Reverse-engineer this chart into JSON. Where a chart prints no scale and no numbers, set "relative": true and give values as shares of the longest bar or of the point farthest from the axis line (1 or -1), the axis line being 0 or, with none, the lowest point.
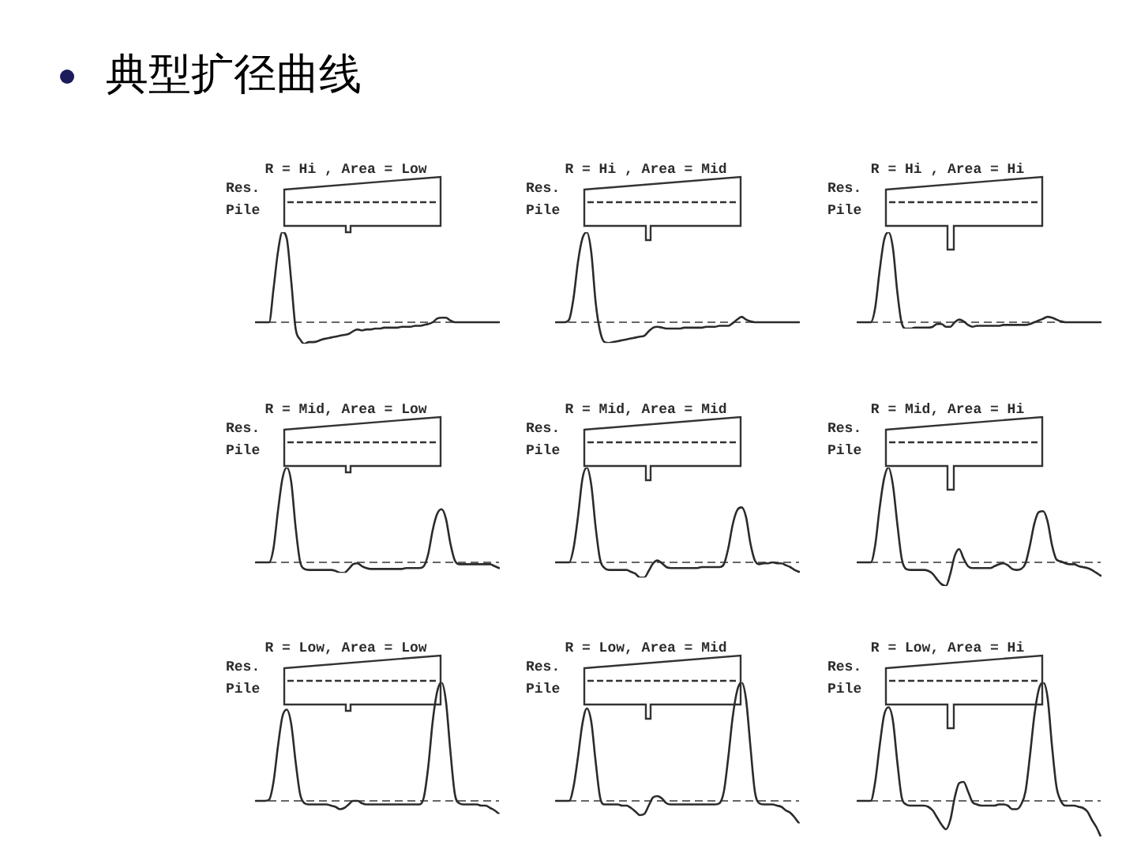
{
  "chart_data": [
    {
      "type": "other",
      "title": "典型扩径曲线"
    },
    {
      "type": "line",
      "title": "R = Hi , Area = Low",
      "annotations": [
        "Res.",
        "Pile"
      ],
      "relative": true,
      "marker": "none",
      "line_style": "solid",
      "ref_lines": [
        {
          "axis": "y",
          "value": 0,
          "line_style": "dashed",
          "color": "#666666"
        }
      ],
      "categories": [
        null,
        null,
        null,
        null,
        null,
        null,
        null,
        null,
        null,
        null,
        null,
        null,
        null,
        null,
        null,
        null,
        null,
        null,
        null,
        null,
        null,
        null,
        null,
        null,
        null,
        null,
        null,
        null,
        null,
        null,
        null,
        null,
        null,
        null,
        null,
        null,
        null,
        null,
        null,
        null,
        null,
        null,
        null,
        null,
        null,
        null,
        null,
        null,
        null,
        null,
        null,
        null,
        null,
        null,
        null,
        null
      ],
      "series": [
        {
          "color": "#2b2b2b",
          "values": [
            0,
            0,
            0,
            0,
            0.37,
            0.78,
            1,
            0.93,
            0.46,
            -0.07,
            -0.19,
            -0.24,
            -0.22,
            -0.22,
            -0.21,
            -0.19,
            -0.18,
            -0.17,
            -0.16,
            -0.15,
            -0.14,
            -0.13,
            -0.1,
            -0.08,
            -0.09,
            -0.08,
            -0.08,
            -0.07,
            -0.07,
            -0.06,
            -0.06,
            -0.06,
            -0.06,
            -0.05,
            -0.05,
            -0.05,
            -0.04,
            -0.04,
            -0.03,
            -0.02,
            0,
            0.04,
            0.05,
            0.05,
            0.02,
            0,
            0,
            0,
            0,
            0,
            0,
            0,
            0,
            0,
            0,
            0
          ]
        }
      ]
    },
    {
      "type": "line",
      "title": "R = Hi , Area = Mid",
      "annotations": [
        "Res.",
        "Pile"
      ],
      "relative": true,
      "marker": "none",
      "line_style": "solid",
      "ref_lines": [
        {
          "axis": "y",
          "value": 0,
          "line_style": "dashed",
          "color": "#666666"
        }
      ],
      "categories": [
        null,
        null,
        null,
        null,
        null,
        null,
        null,
        null,
        null,
        null,
        null,
        null,
        null,
        null,
        null,
        null,
        null,
        null,
        null,
        null,
        null,
        null,
        null,
        null,
        null,
        null,
        null,
        null,
        null,
        null,
        null,
        null,
        null,
        null,
        null,
        null,
        null,
        null,
        null,
        null,
        null,
        null,
        null,
        null,
        null,
        null,
        null,
        null,
        null,
        null,
        null,
        null,
        null,
        null,
        null,
        null
      ],
      "series": [
        {
          "color": "#2b2b2b",
          "values": [
            0,
            0,
            0,
            0.03,
            0.27,
            0.67,
            0.93,
            1,
            0.78,
            0.22,
            -0.1,
            -0.22,
            -0.23,
            -0.22,
            -0.21,
            -0.2,
            -0.19,
            -0.18,
            -0.17,
            -0.16,
            -0.15,
            -0.1,
            -0.06,
            -0.05,
            -0.06,
            -0.07,
            -0.07,
            -0.07,
            -0.07,
            -0.06,
            -0.06,
            -0.06,
            -0.06,
            -0.06,
            -0.05,
            -0.05,
            -0.05,
            -0.04,
            -0.04,
            -0.04,
            -0.01,
            0.03,
            0.06,
            0.03,
            0.01,
            0,
            0,
            0,
            0,
            0,
            0,
            0,
            0,
            0,
            0,
            0
          ]
        }
      ]
    },
    {
      "type": "line",
      "title": "R = Hi , Area = Hi",
      "annotations": [
        "Res.",
        "Pile"
      ],
      "relative": true,
      "marker": "none",
      "line_style": "solid",
      "ref_lines": [
        {
          "axis": "y",
          "value": 0,
          "line_style": "dashed",
          "color": "#666666"
        }
      ],
      "categories": [
        null,
        null,
        null,
        null,
        null,
        null,
        null,
        null,
        null,
        null,
        null,
        null,
        null,
        null,
        null,
        null,
        null,
        null,
        null,
        null,
        null,
        null,
        null,
        null,
        null,
        null,
        null,
        null,
        null,
        null,
        null,
        null,
        null,
        null,
        null,
        null,
        null,
        null,
        null,
        null,
        null,
        null,
        null,
        null,
        null,
        null,
        null,
        null,
        null,
        null,
        null,
        null,
        null,
        null,
        null,
        null
      ],
      "series": [
        {
          "color": "#2b2b2b",
          "values": [
            0,
            0,
            0,
            0,
            0.16,
            0.57,
            0.91,
            1,
            0.83,
            0.34,
            -0.01,
            -0.07,
            -0.07,
            -0.06,
            -0.06,
            -0.06,
            -0.06,
            -0.05,
            -0.02,
            -0.02,
            -0.05,
            -0.05,
            0,
            0.03,
            0.01,
            -0.03,
            -0.05,
            -0.04,
            -0.04,
            -0.04,
            -0.04,
            -0.04,
            -0.04,
            -0.03,
            -0.03,
            -0.03,
            -0.03,
            -0.03,
            -0.03,
            -0.02,
            0,
            0.02,
            0.04,
            0.06,
            0.05,
            0.03,
            0.01,
            0,
            0,
            0,
            0,
            0,
            0,
            0,
            0,
            0
          ]
        }
      ]
    },
    {
      "type": "line",
      "title": "R = Mid, Area = Low",
      "annotations": [
        "Res.",
        "Pile"
      ],
      "relative": true,
      "marker": "none",
      "line_style": "solid",
      "ref_lines": [
        {
          "axis": "y",
          "value": 0,
          "line_style": "dashed",
          "color": "#666666"
        }
      ],
      "categories": [
        null,
        null,
        null,
        null,
        null,
        null,
        null,
        null,
        null,
        null,
        null,
        null,
        null,
        null,
        null,
        null,
        null,
        null,
        null,
        null,
        null,
        null,
        null,
        null,
        null,
        null,
        null,
        null,
        null,
        null,
        null,
        null,
        null,
        null,
        null,
        null,
        null,
        null,
        null,
        null,
        null,
        null,
        null,
        null,
        null,
        null,
        null,
        null,
        null,
        null,
        null,
        null,
        null,
        null,
        null,
        null
      ],
      "series": [
        {
          "color": "#2b2b2b",
          "values": [
            0,
            0,
            0,
            0,
            0.15,
            0.54,
            0.88,
            1,
            0.85,
            0.37,
            0.01,
            -0.07,
            -0.08,
            -0.08,
            -0.08,
            -0.08,
            -0.08,
            -0.08,
            -0.09,
            -0.11,
            -0.11,
            -0.07,
            -0.02,
            -0.01,
            -0.04,
            -0.06,
            -0.07,
            -0.07,
            -0.07,
            -0.07,
            -0.07,
            -0.07,
            -0.07,
            -0.07,
            -0.06,
            -0.06,
            -0.06,
            -0.06,
            -0.04,
            0.09,
            0.34,
            0.51,
            0.56,
            0.46,
            0.2,
            0.02,
            -0.02,
            -0.02,
            -0.02,
            -0.02,
            -0.02,
            -0.02,
            -0.02,
            -0.02,
            -0.04,
            -0.06
          ]
        }
      ]
    },
    {
      "type": "line",
      "title": "R = Mid, Area = Mid",
      "annotations": [
        "Res.",
        "Pile"
      ],
      "relative": true,
      "marker": "none",
      "line_style": "solid",
      "ref_lines": [
        {
          "axis": "y",
          "value": 0,
          "line_style": "dashed",
          "color": "#666666"
        }
      ],
      "categories": [
        null,
        null,
        null,
        null,
        null,
        null,
        null,
        null,
        null,
        null,
        null,
        null,
        null,
        null,
        null,
        null,
        null,
        null,
        null,
        null,
        null,
        null,
        null,
        null,
        null,
        null,
        null,
        null,
        null,
        null,
        null,
        null,
        null,
        null,
        null,
        null,
        null,
        null,
        null,
        null,
        null,
        null,
        null,
        null,
        null,
        null,
        null,
        null,
        null,
        null,
        null,
        null,
        null,
        null,
        null,
        null
      ],
      "series": [
        {
          "color": "#2b2b2b",
          "values": [
            0,
            0,
            0,
            0,
            0.15,
            0.48,
            0.88,
            1,
            0.82,
            0.37,
            0.03,
            -0.06,
            -0.08,
            -0.08,
            -0.08,
            -0.08,
            -0.08,
            -0.1,
            -0.12,
            -0.16,
            -0.16,
            -0.09,
            -0.01,
            0.02,
            -0.01,
            -0.05,
            -0.06,
            -0.06,
            -0.06,
            -0.06,
            -0.06,
            -0.06,
            -0.06,
            -0.05,
            -0.05,
            -0.05,
            -0.05,
            -0.05,
            -0.02,
            0.15,
            0.4,
            0.55,
            0.58,
            0.48,
            0.2,
            0.02,
            -0.02,
            -0.01,
            -0.01,
            0,
            -0.01,
            -0.01,
            -0.03,
            -0.05,
            -0.08,
            -0.1
          ]
        }
      ]
    },
    {
      "type": "line",
      "title": "R = Mid, Area = Hi",
      "annotations": [
        "Res.",
        "Pile"
      ],
      "relative": true,
      "marker": "none",
      "line_style": "solid",
      "ref_lines": [
        {
          "axis": "y",
          "value": 0,
          "line_style": "dashed",
          "color": "#666666"
        }
      ],
      "categories": [
        null,
        null,
        null,
        null,
        null,
        null,
        null,
        null,
        null,
        null,
        null,
        null,
        null,
        null,
        null,
        null,
        null,
        null,
        null,
        null,
        null,
        null,
        null,
        null,
        null,
        null,
        null,
        null,
        null,
        null,
        null,
        null,
        null,
        null,
        null,
        null,
        null,
        null,
        null,
        null,
        null,
        null,
        null,
        null,
        null,
        null,
        null,
        null,
        null,
        null,
        null,
        null,
        null,
        null,
        null,
        null
      ],
      "series": [
        {
          "color": "#2b2b2b",
          "values": [
            0,
            0,
            0,
            0,
            0.18,
            0.57,
            0.88,
            1,
            0.82,
            0.41,
            0.04,
            -0.07,
            -0.08,
            -0.08,
            -0.08,
            -0.08,
            -0.09,
            -0.12,
            -0.18,
            -0.23,
            -0.25,
            -0.12,
            0.07,
            0.14,
            0.04,
            -0.04,
            -0.06,
            -0.06,
            -0.06,
            -0.06,
            -0.06,
            -0.04,
            -0.02,
            -0.01,
            -0.03,
            -0.07,
            -0.08,
            -0.07,
            -0.01,
            0.18,
            0.41,
            0.53,
            0.54,
            0.43,
            0.18,
            0.03,
            0.01,
            -0.01,
            -0.02,
            -0.02,
            -0.04,
            -0.05,
            -0.06,
            -0.08,
            -0.11,
            -0.14
          ]
        }
      ]
    },
    {
      "type": "line",
      "title": "R = Low, Area = Low",
      "annotations": [
        "Res.",
        "Pile"
      ],
      "relative": true,
      "marker": "none",
      "line_style": "solid",
      "ref_lines": [
        {
          "axis": "y",
          "value": 0,
          "line_style": "dashed",
          "color": "#666666"
        }
      ],
      "categories": [
        null,
        null,
        null,
        null,
        null,
        null,
        null,
        null,
        null,
        null,
        null,
        null,
        null,
        null,
        null,
        null,
        null,
        null,
        null,
        null,
        null,
        null,
        null,
        null,
        null,
        null,
        null,
        null,
        null,
        null,
        null,
        null,
        null,
        null,
        null,
        null,
        null,
        null,
        null,
        null,
        null,
        null,
        null,
        null,
        null,
        null,
        null,
        null,
        null,
        null,
        null,
        null,
        null,
        null,
        null,
        null
      ],
      "series": [
        {
          "color": "#2b2b2b",
          "values": [
            0,
            0,
            0,
            0.01,
            0.16,
            0.46,
            0.71,
            0.77,
            0.65,
            0.33,
            0.06,
            -0.02,
            -0.03,
            -0.03,
            -0.03,
            -0.03,
            -0.03,
            -0.04,
            -0.05,
            -0.07,
            -0.06,
            -0.03,
            0,
            0,
            -0.02,
            -0.03,
            -0.03,
            -0.03,
            -0.03,
            -0.03,
            -0.03,
            -0.03,
            -0.03,
            -0.03,
            -0.03,
            -0.03,
            -0.03,
            -0.03,
            0.03,
            0.29,
            0.67,
            0.92,
            1,
            0.84,
            0.42,
            0.06,
            -0.02,
            -0.03,
            -0.03,
            -0.03,
            -0.03,
            -0.04,
            -0.04,
            -0.06,
            -0.08,
            -0.11
          ]
        }
      ]
    },
    {
      "type": "line",
      "title": "R = Low, Area = Mid",
      "annotations": [
        "Res.",
        "Pile"
      ],
      "relative": true,
      "marker": "none",
      "line_style": "solid",
      "ref_lines": [
        {
          "axis": "y",
          "value": 0,
          "line_style": "dashed",
          "color": "#666666"
        }
      ],
      "categories": [
        null,
        null,
        null,
        null,
        null,
        null,
        null,
        null,
        null,
        null,
        null,
        null,
        null,
        null,
        null,
        null,
        null,
        null,
        null,
        null,
        null,
        null,
        null,
        null,
        null,
        null,
        null,
        null,
        null,
        null,
        null,
        null,
        null,
        null,
        null,
        null,
        null,
        null,
        null,
        null,
        null,
        null,
        null,
        null,
        null,
        null,
        null,
        null,
        null,
        null,
        null,
        null,
        null,
        null,
        null,
        null
      ],
      "series": [
        {
          "color": "#2b2b2b",
          "values": [
            0,
            0,
            0,
            0,
            0.12,
            0.37,
            0.65,
            0.78,
            0.67,
            0.33,
            0.03,
            -0.03,
            -0.03,
            -0.03,
            -0.03,
            -0.04,
            -0.04,
            -0.06,
            -0.09,
            -0.12,
            -0.11,
            -0.04,
            0.03,
            0.04,
            0.02,
            -0.02,
            -0.03,
            -0.03,
            -0.03,
            -0.03,
            -0.03,
            -0.03,
            -0.03,
            -0.03,
            -0.03,
            -0.03,
            -0.03,
            -0.02,
            0.08,
            0.37,
            0.71,
            0.93,
            1,
            0.86,
            0.46,
            0.08,
            -0.02,
            -0.03,
            -0.03,
            -0.03,
            -0.04,
            -0.05,
            -0.08,
            -0.1,
            -0.14,
            -0.19
          ]
        }
      ]
    },
    {
      "type": "line",
      "title": "R = Low, Area = Hi",
      "annotations": [
        "Res.",
        "Pile"
      ],
      "relative": true,
      "marker": "none",
      "line_style": "solid",
      "ref_lines": [
        {
          "axis": "y",
          "value": 0,
          "line_style": "dashed",
          "color": "#666666"
        }
      ],
      "categories": [
        null,
        null,
        null,
        null,
        null,
        null,
        null,
        null,
        null,
        null,
        null,
        null,
        null,
        null,
        null,
        null,
        null,
        null,
        null,
        null,
        null,
        null,
        null,
        null,
        null,
        null,
        null,
        null,
        null,
        null,
        null,
        null,
        null,
        null,
        null,
        null,
        null,
        null,
        null,
        null,
        null,
        null,
        null,
        null,
        null,
        null,
        null,
        null,
        null,
        null,
        null,
        null,
        null,
        null,
        null,
        null
      ],
      "series": [
        {
          "color": "#2b2b2b",
          "values": [
            0,
            0,
            0,
            0,
            0.16,
            0.46,
            0.72,
            0.79,
            0.68,
            0.33,
            0.03,
            -0.03,
            -0.04,
            -0.04,
            -0.04,
            -0.04,
            -0.05,
            -0.08,
            -0.14,
            -0.2,
            -0.24,
            -0.16,
            0.03,
            0.15,
            0.16,
            0.08,
            -0.01,
            -0.03,
            -0.04,
            -0.04,
            -0.04,
            -0.04,
            -0.03,
            -0.03,
            -0.04,
            -0.07,
            -0.07,
            -0.03,
            0.08,
            0.38,
            0.72,
            0.94,
            1,
            0.87,
            0.46,
            0.12,
            0,
            -0.04,
            -0.04,
            -0.04,
            -0.05,
            -0.06,
            -0.09,
            -0.16,
            -0.22,
            -0.3
          ]
        }
      ]
    }
  ]
}
